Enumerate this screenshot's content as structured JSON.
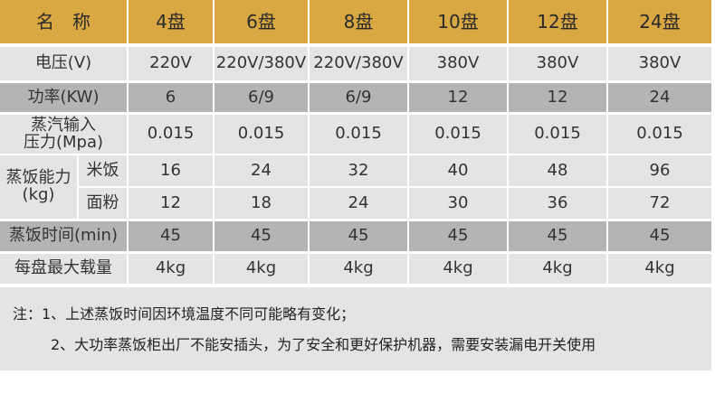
{
  "header": {
    "name": "名　称",
    "columns": [
      "4盘",
      "6盘",
      "8盘",
      "10盘",
      "12盘",
      "24盘"
    ]
  },
  "rows": [
    {
      "label": [
        "电压(V)"
      ],
      "cells": [
        "220V",
        "220V/380V",
        "220V/380V",
        "380V",
        "380V",
        "380V"
      ]
    },
    {
      "label": [
        "功率(KW)"
      ],
      "cells": [
        "6",
        "6/9",
        "6/9",
        "12",
        "12",
        "24"
      ]
    },
    {
      "label": [
        "蒸汽输入",
        "压力(Mpa)"
      ],
      "cells": [
        "0.015",
        "0.015",
        "0.015",
        "0.015",
        "0.015",
        "0.015"
      ]
    },
    {
      "label": [
        "蒸饭能力",
        "(kg)"
      ],
      "subrows": [
        {
          "label": "米饭",
          "cells": [
            "16",
            "24",
            "32",
            "40",
            "48",
            "96"
          ]
        },
        {
          "label": "面粉",
          "cells": [
            "12",
            "18",
            "24",
            "30",
            "36",
            "72"
          ]
        }
      ]
    },
    {
      "label": [
        "蒸饭时间(min)"
      ],
      "cells": [
        "45",
        "45",
        "45",
        "45",
        "45",
        "45"
      ]
    },
    {
      "label": [
        "每盘最大载量"
      ],
      "cells": [
        "4kg",
        "4kg",
        "4kg",
        "4kg",
        "4kg",
        "4kg"
      ]
    }
  ],
  "notes": [
    "注：1、上述蒸饭时间因环境温度不同可能略有变化；",
    "2、大功率蒸饭柜出厂不能安插头，为了安全和更好保护机器，需要安装漏电开关使用"
  ]
}
